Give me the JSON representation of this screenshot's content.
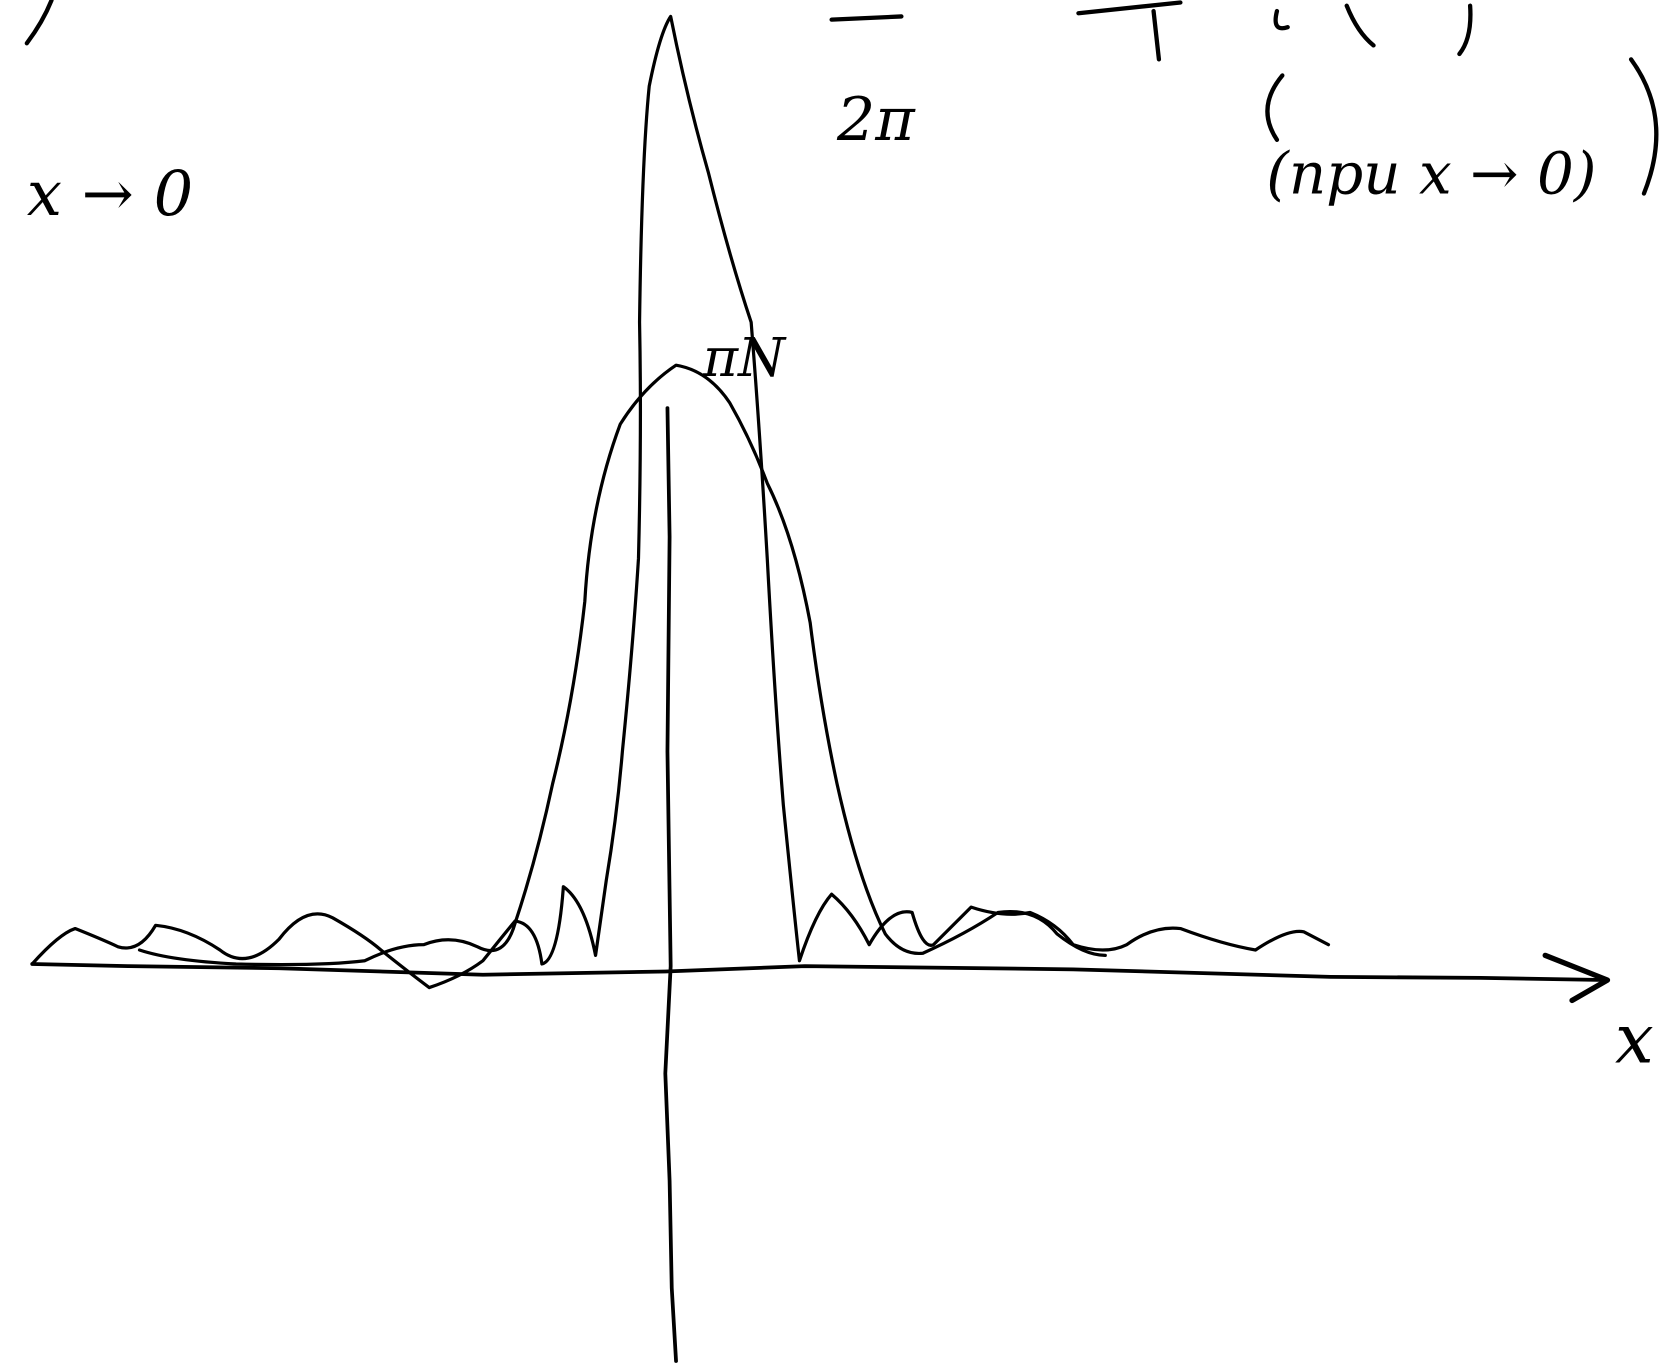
{
  "annotations": {
    "limit_left": "x → 0",
    "fraction_denominator": "2π",
    "limit_right": "(при x → 0)",
    "peak_label": "πN"
  },
  "axis": {
    "x_label": "x"
  }
}
